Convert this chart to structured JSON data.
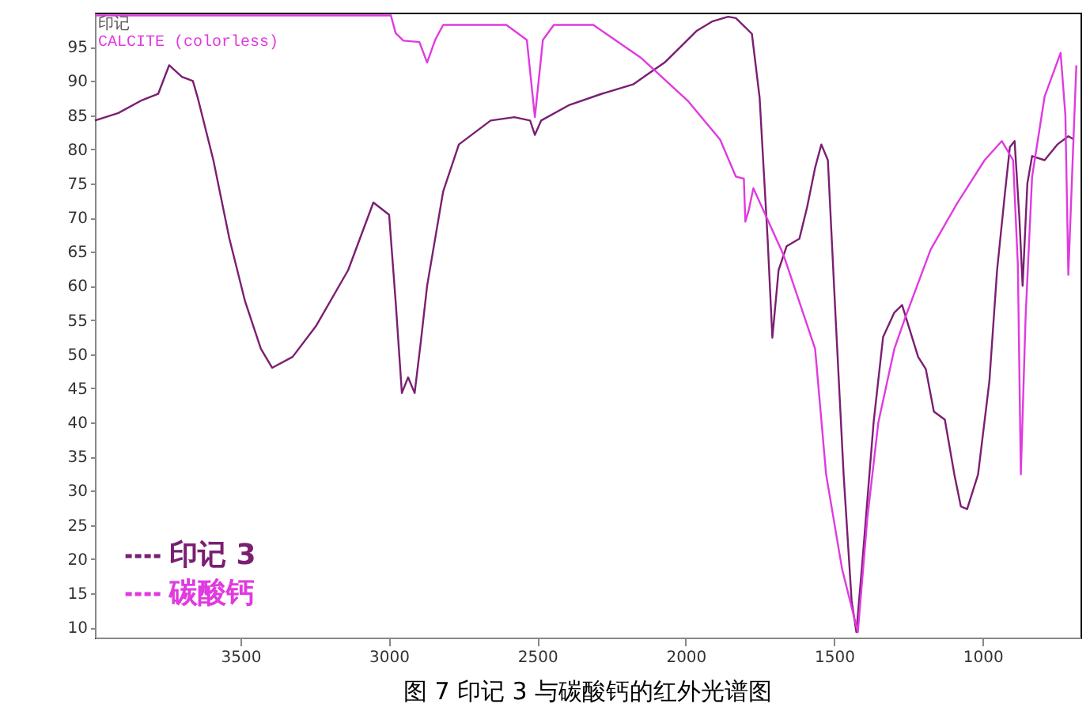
{
  "chart_data": {
    "type": "line",
    "title": "图 7  印记 3 与碳酸钙的红外光谱图",
    "annotations": [
      "印记",
      "CALCITE  (colorless)"
    ],
    "xlim": [
      3990,
      670
    ],
    "xticks": [
      3500,
      3000,
      2500,
      2000,
      1500,
      1000
    ],
    "ylim": [
      8.5,
      100
    ],
    "yticks": [
      10,
      15,
      20,
      25,
      30,
      35,
      40,
      45,
      50,
      55,
      60,
      65,
      70,
      75,
      80,
      85,
      90,
      95
    ],
    "grid": false,
    "legend": "bottom left",
    "marker": "none",
    "line_style": "solid",
    "series": [
      {
        "name": "印记 3",
        "color": "#7a1f72",
        "x": [
          3990,
          3911,
          3831,
          3777,
          3740,
          3697,
          3660,
          3644,
          3591,
          3537,
          3484,
          3431,
          3393,
          3324,
          3244,
          3137,
          3052,
          2999,
          2977,
          2956,
          2935,
          2913,
          2892,
          2871,
          2817,
          2764,
          2657,
          2577,
          2524,
          2508,
          2487,
          2391,
          2284,
          2177,
          2124,
          2071,
          2017,
          1964,
          1911,
          1857,
          1831,
          1777,
          1751,
          1724,
          1708,
          1687,
          1660,
          1617,
          1591,
          1564,
          1543,
          1521,
          1495,
          1468,
          1441,
          1425,
          1404,
          1367,
          1335,
          1297,
          1271,
          1217,
          1191,
          1164,
          1127,
          1095,
          1073,
          1052,
          1015,
          977,
          951,
          924,
          908,
          892,
          876,
          865,
          849,
          833,
          791,
          748,
          711,
          695
        ],
        "values": [
          84.2,
          85.3,
          87.2,
          88.1,
          92.3,
          90.6,
          90.0,
          87.6,
          78.4,
          66.9,
          57.7,
          50.8,
          48.0,
          49.6,
          54.2,
          62.3,
          72.2,
          70.4,
          57.7,
          44.3,
          46.6,
          44.3,
          51.9,
          60.0,
          73.8,
          80.7,
          84.2,
          84.7,
          84.2,
          82.1,
          84.2,
          86.5,
          88.1,
          89.5,
          91.1,
          92.7,
          95.0,
          97.3,
          98.7,
          99.4,
          99.2,
          96.9,
          87.6,
          66.9,
          52.4,
          62.3,
          65.8,
          66.9,
          71.5,
          77.3,
          80.7,
          78.4,
          55.4,
          32.4,
          13.9,
          9.3,
          20,
          40,
          52.5,
          56.1,
          57.2,
          49.6,
          47.8,
          41.6,
          40.4,
          32.4,
          27.7,
          27.3,
          32.4,
          46.0,
          62.3,
          73.8,
          80.3,
          81.2,
          70,
          60,
          75,
          79.0,
          78.4,
          80.7,
          81.9,
          81.5
        ]
      },
      {
        "name": "碳酸钙",
        "color": "#e03ae0",
        "x": [
          3990,
          2993,
          2977,
          2951,
          2897,
          2871,
          2844,
          2817,
          2604,
          2535,
          2508,
          2481,
          2444,
          2311,
          2151,
          1991,
          1884,
          1831,
          1804,
          1799,
          1788,
          1772,
          1671,
          1564,
          1527,
          1473,
          1420,
          1388,
          1351,
          1297,
          1260,
          1175,
          1084,
          993,
          935,
          897,
          881,
          871,
          855,
          833,
          791,
          737,
          721,
          711,
          695,
          684
        ],
        "values": [
          99.6,
          99.6,
          97,
          95.9,
          95.7,
          92.7,
          96,
          98.2,
          98.2,
          96,
          84.7,
          96,
          98.2,
          98.2,
          93.4,
          87.0,
          81.4,
          76.0,
          75.7,
          69.4,
          71,
          74.3,
          64.6,
          50.8,
          32.4,
          18.5,
          9.3,
          26,
          40,
          50.8,
          55.4,
          65.3,
          72.2,
          78.4,
          81.2,
          78.4,
          63,
          32.4,
          55.4,
          76,
          87.7,
          94.1,
          85,
          61.6,
          80,
          92.3
        ]
      }
    ]
  }
}
